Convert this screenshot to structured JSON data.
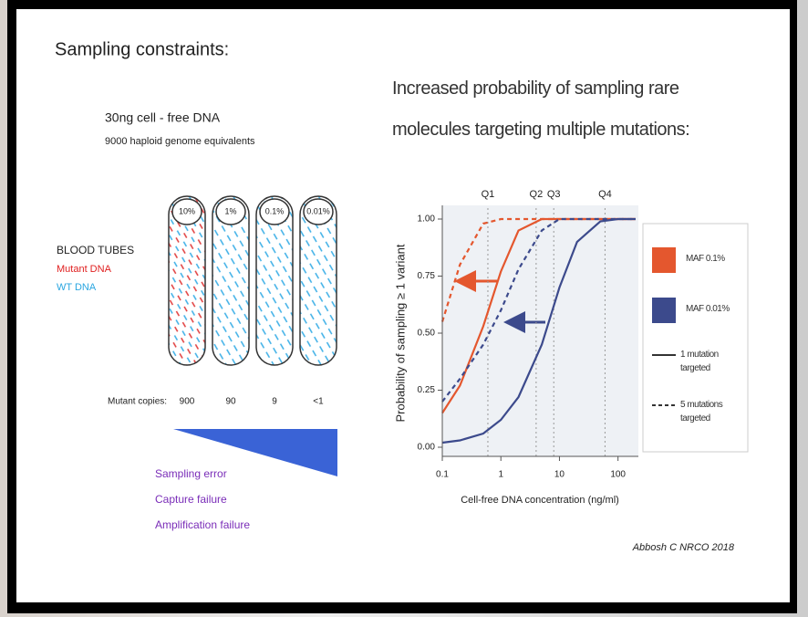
{
  "slide": {
    "heading": "Sampling constraints:",
    "dna_amount": "30ng cell - free DNA",
    "genome_equivalents": "9000 haploid genome equivalents",
    "tube_legend": {
      "title": "BLOOD TUBES",
      "mutant": "Mutant DNA",
      "wild_type": "WT DNA"
    },
    "tubes": [
      {
        "maf": "10%",
        "copies": "900"
      },
      {
        "maf": "1%",
        "copies": "90"
      },
      {
        "maf": "0.1%",
        "copies": "9"
      },
      {
        "maf": "0.01%",
        "copies": "<1"
      }
    ],
    "copies_label": "Mutant copies:",
    "failure_modes": [
      "Sampling error",
      "Capture failure",
      "Amplification failure"
    ],
    "citation": "Abbosh C NRCO 2018"
  },
  "chart_data": {
    "type": "line",
    "title": "Increased probability of sampling rare molecules targeting multiple mutations:",
    "x_label": "Cell-free DNA concentration (ng/ml)",
    "y_label": "Probability of sampling ≥ 1 variant",
    "x": [
      0.1,
      0.2,
      0.5,
      1,
      2,
      5,
      10,
      20,
      50,
      100,
      200
    ],
    "xlog": true,
    "xlim": [
      0.1,
      200
    ],
    "xticks": [
      0.1,
      1,
      10,
      100
    ],
    "ylim": [
      0,
      1
    ],
    "yticks": [
      {
        "value": 0,
        "label": "0.00"
      },
      {
        "value": 0.25,
        "label": "0.25"
      },
      {
        "value": 0.5,
        "label": "0.50"
      },
      {
        "value": 0.75,
        "label": "0.75"
      },
      {
        "value": 1,
        "label": "1.00"
      }
    ],
    "quartiles": [
      {
        "label": "Q1",
        "x": 0.6
      },
      {
        "label": "Q2",
        "x": 4
      },
      {
        "label": "Q3",
        "x": 8
      },
      {
        "label": "Q4",
        "x": 60
      }
    ],
    "series": [
      {
        "color": "#e4572e",
        "dashed": false,
        "values": [
          0.15,
          0.27,
          0.53,
          0.77,
          0.95,
          1,
          1,
          1,
          1,
          1,
          1
        ]
      },
      {
        "color": "#e4572e",
        "dashed": true,
        "values": [
          0.55,
          0.8,
          0.98,
          1,
          1,
          1,
          1,
          1,
          1,
          1,
          1
        ]
      },
      {
        "color": "#3c4a8c",
        "dashed": false,
        "values": [
          0.02,
          0.03,
          0.06,
          0.12,
          0.22,
          0.45,
          0.7,
          0.9,
          0.99,
          1,
          1
        ]
      },
      {
        "color": "#3c4a8c",
        "dashed": true,
        "values": [
          0.2,
          0.3,
          0.45,
          0.6,
          0.78,
          0.95,
          1,
          1,
          1,
          1,
          1
        ]
      }
    ],
    "legend": {
      "colors": [
        {
          "name": "MAF 0.1%",
          "color": "#e4572e"
        },
        {
          "name": "MAF 0.01%",
          "color": "#3c4a8c"
        }
      ],
      "line_styles": [
        {
          "name": "1 mutation targeted",
          "dashed": false
        },
        {
          "name": "5 mutations targeted",
          "dashed": true
        }
      ]
    }
  }
}
